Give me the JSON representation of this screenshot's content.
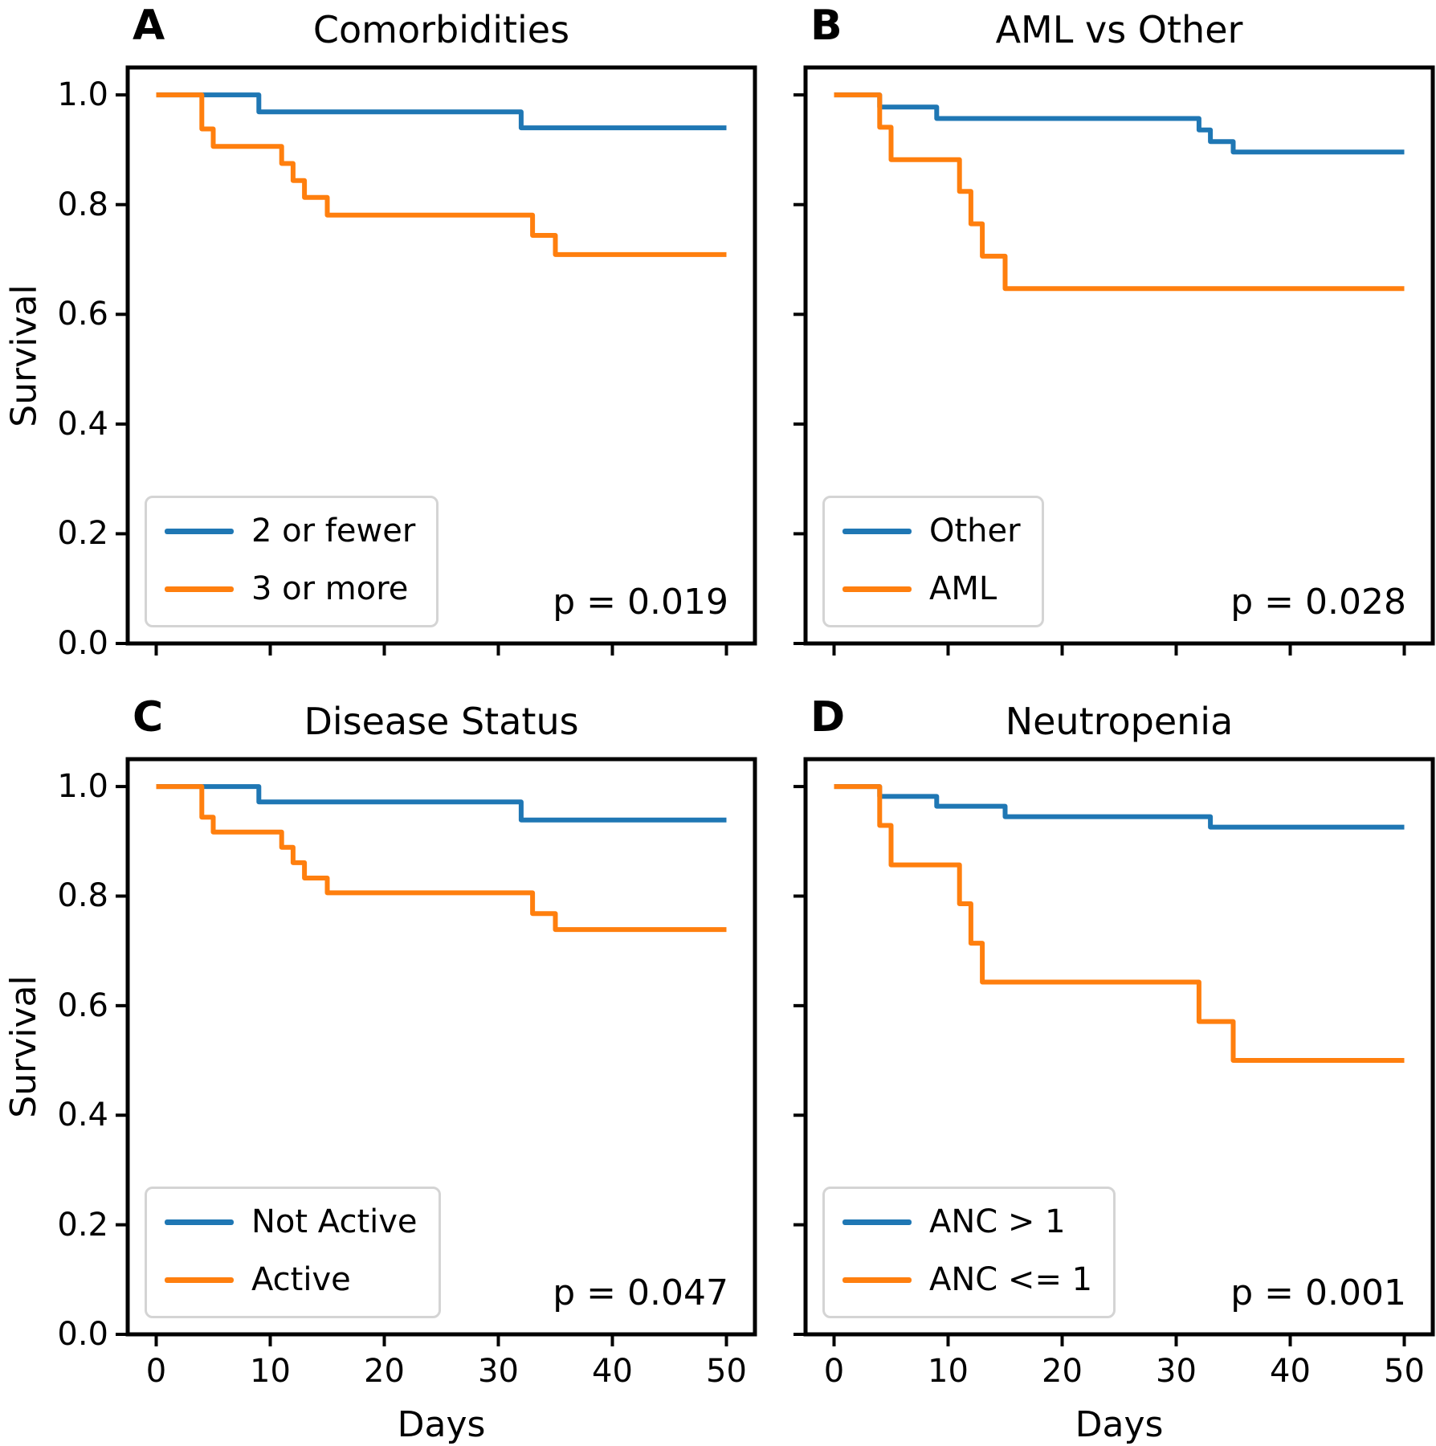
{
  "figure": {
    "xlabel": "Days",
    "ylabel": "Survival"
  },
  "colors": {
    "blue": "#1f77b4",
    "orange": "#ff7f0e",
    "spine": "#000000",
    "legend_border": "#d4d4d4"
  },
  "chart_data": [
    {
      "type": "line",
      "subtype": "kaplan-meier-step",
      "panel_label": "A",
      "title": "Comorbidities",
      "p_label": "p = 0.019",
      "xlabel": "",
      "ylabel": "Survival",
      "xlim": [
        -2.5,
        52.5
      ],
      "ylim": [
        0,
        1.05
      ],
      "x_ticks": [
        0,
        10,
        20,
        30,
        40,
        50
      ],
      "y_ticks": [
        1.0,
        0.8,
        0.6,
        0.4,
        0.2,
        0.0
      ],
      "x_tick_labels": [],
      "y_tick_labels": [
        "1.0",
        "0.8",
        "0.6",
        "0.4",
        "0.2",
        "0.0"
      ],
      "legend_position": "lower-left",
      "grid": false,
      "series": [
        {
          "name": "2 or fewer",
          "color": "blue",
          "steps": [
            [
              0,
              1.0
            ],
            [
              9,
              0.969
            ],
            [
              32,
              0.94
            ],
            [
              50,
              0.94
            ]
          ]
        },
        {
          "name": "3 or more",
          "color": "orange",
          "steps": [
            [
              0,
              1.0
            ],
            [
              4,
              0.938
            ],
            [
              5,
              0.906
            ],
            [
              11,
              0.875
            ],
            [
              12,
              0.844
            ],
            [
              13,
              0.813
            ],
            [
              15,
              0.781
            ],
            [
              33,
              0.744
            ],
            [
              35,
              0.709
            ],
            [
              50,
              0.709
            ]
          ]
        }
      ]
    },
    {
      "type": "line",
      "subtype": "kaplan-meier-step",
      "panel_label": "B",
      "title": "AML vs Other",
      "p_label": "p = 0.028",
      "xlabel": "",
      "ylabel": "",
      "xlim": [
        -2.5,
        52.5
      ],
      "ylim": [
        0,
        1.05
      ],
      "x_ticks": [
        0,
        10,
        20,
        30,
        40,
        50
      ],
      "y_ticks": [
        1.0,
        0.8,
        0.6,
        0.4,
        0.2,
        0.0
      ],
      "x_tick_labels": [],
      "y_tick_labels": [],
      "legend_position": "lower-left",
      "grid": false,
      "series": [
        {
          "name": "Other",
          "color": "blue",
          "steps": [
            [
              0,
              1.0
            ],
            [
              4,
              0.978
            ],
            [
              9,
              0.957
            ],
            [
              32,
              0.936
            ],
            [
              33,
              0.915
            ],
            [
              35,
              0.896
            ],
            [
              50,
              0.896
            ]
          ]
        },
        {
          "name": "AML",
          "color": "orange",
          "steps": [
            [
              0,
              1.0
            ],
            [
              4,
              0.941
            ],
            [
              5,
              0.882
            ],
            [
              11,
              0.824
            ],
            [
              12,
              0.765
            ],
            [
              13,
              0.706
            ],
            [
              15,
              0.647
            ],
            [
              50,
              0.647
            ]
          ]
        }
      ]
    },
    {
      "type": "line",
      "subtype": "kaplan-meier-step",
      "panel_label": "C",
      "title": "Disease Status",
      "p_label": "p = 0.047",
      "xlabel": "Days",
      "ylabel": "Survival",
      "xlim": [
        -2.5,
        52.5
      ],
      "ylim": [
        0,
        1.05
      ],
      "x_ticks": [
        0,
        10,
        20,
        30,
        40,
        50
      ],
      "y_ticks": [
        1.0,
        0.8,
        0.6,
        0.4,
        0.2,
        0.0
      ],
      "x_tick_labels": [
        "0",
        "10",
        "20",
        "30",
        "40",
        "50"
      ],
      "y_tick_labels": [
        "1.0",
        "0.8",
        "0.6",
        "0.4",
        "0.2",
        "0.0"
      ],
      "legend_position": "lower-left",
      "grid": false,
      "series": [
        {
          "name": "Not Active",
          "color": "blue",
          "steps": [
            [
              0,
              1.0
            ],
            [
              9,
              0.972
            ],
            [
              32,
              0.939
            ],
            [
              50,
              0.939
            ]
          ]
        },
        {
          "name": "Active",
          "color": "orange",
          "steps": [
            [
              0,
              1.0
            ],
            [
              4,
              0.944
            ],
            [
              5,
              0.917
            ],
            [
              11,
              0.889
            ],
            [
              12,
              0.861
            ],
            [
              13,
              0.833
            ],
            [
              15,
              0.806
            ],
            [
              33,
              0.768
            ],
            [
              35,
              0.739
            ],
            [
              50,
              0.739
            ]
          ]
        }
      ]
    },
    {
      "type": "line",
      "subtype": "kaplan-meier-step",
      "panel_label": "D",
      "title": "Neutropenia",
      "p_label": "p = 0.001",
      "xlabel": "Days",
      "ylabel": "",
      "xlim": [
        -2.5,
        52.5
      ],
      "ylim": [
        0,
        1.05
      ],
      "x_ticks": [
        0,
        10,
        20,
        30,
        40,
        50
      ],
      "y_ticks": [
        1.0,
        0.8,
        0.6,
        0.4,
        0.2,
        0.0
      ],
      "x_tick_labels": [
        "0",
        "10",
        "20",
        "30",
        "40",
        "50"
      ],
      "y_tick_labels": [],
      "legend_position": "lower-left",
      "grid": false,
      "series": [
        {
          "name": "ANC > 1",
          "color": "blue",
          "steps": [
            [
              0,
              1.0
            ],
            [
              4,
              0.982
            ],
            [
              9,
              0.964
            ],
            [
              15,
              0.945
            ],
            [
              33,
              0.926
            ],
            [
              50,
              0.926
            ]
          ]
        },
        {
          "name": "ANC <= 1",
          "color": "orange",
          "steps": [
            [
              0,
              1.0
            ],
            [
              4,
              0.929
            ],
            [
              5,
              0.857
            ],
            [
              11,
              0.786
            ],
            [
              12,
              0.714
            ],
            [
              13,
              0.643
            ],
            [
              32,
              0.571
            ],
            [
              35,
              0.5
            ],
            [
              50,
              0.5
            ]
          ]
        }
      ]
    }
  ]
}
